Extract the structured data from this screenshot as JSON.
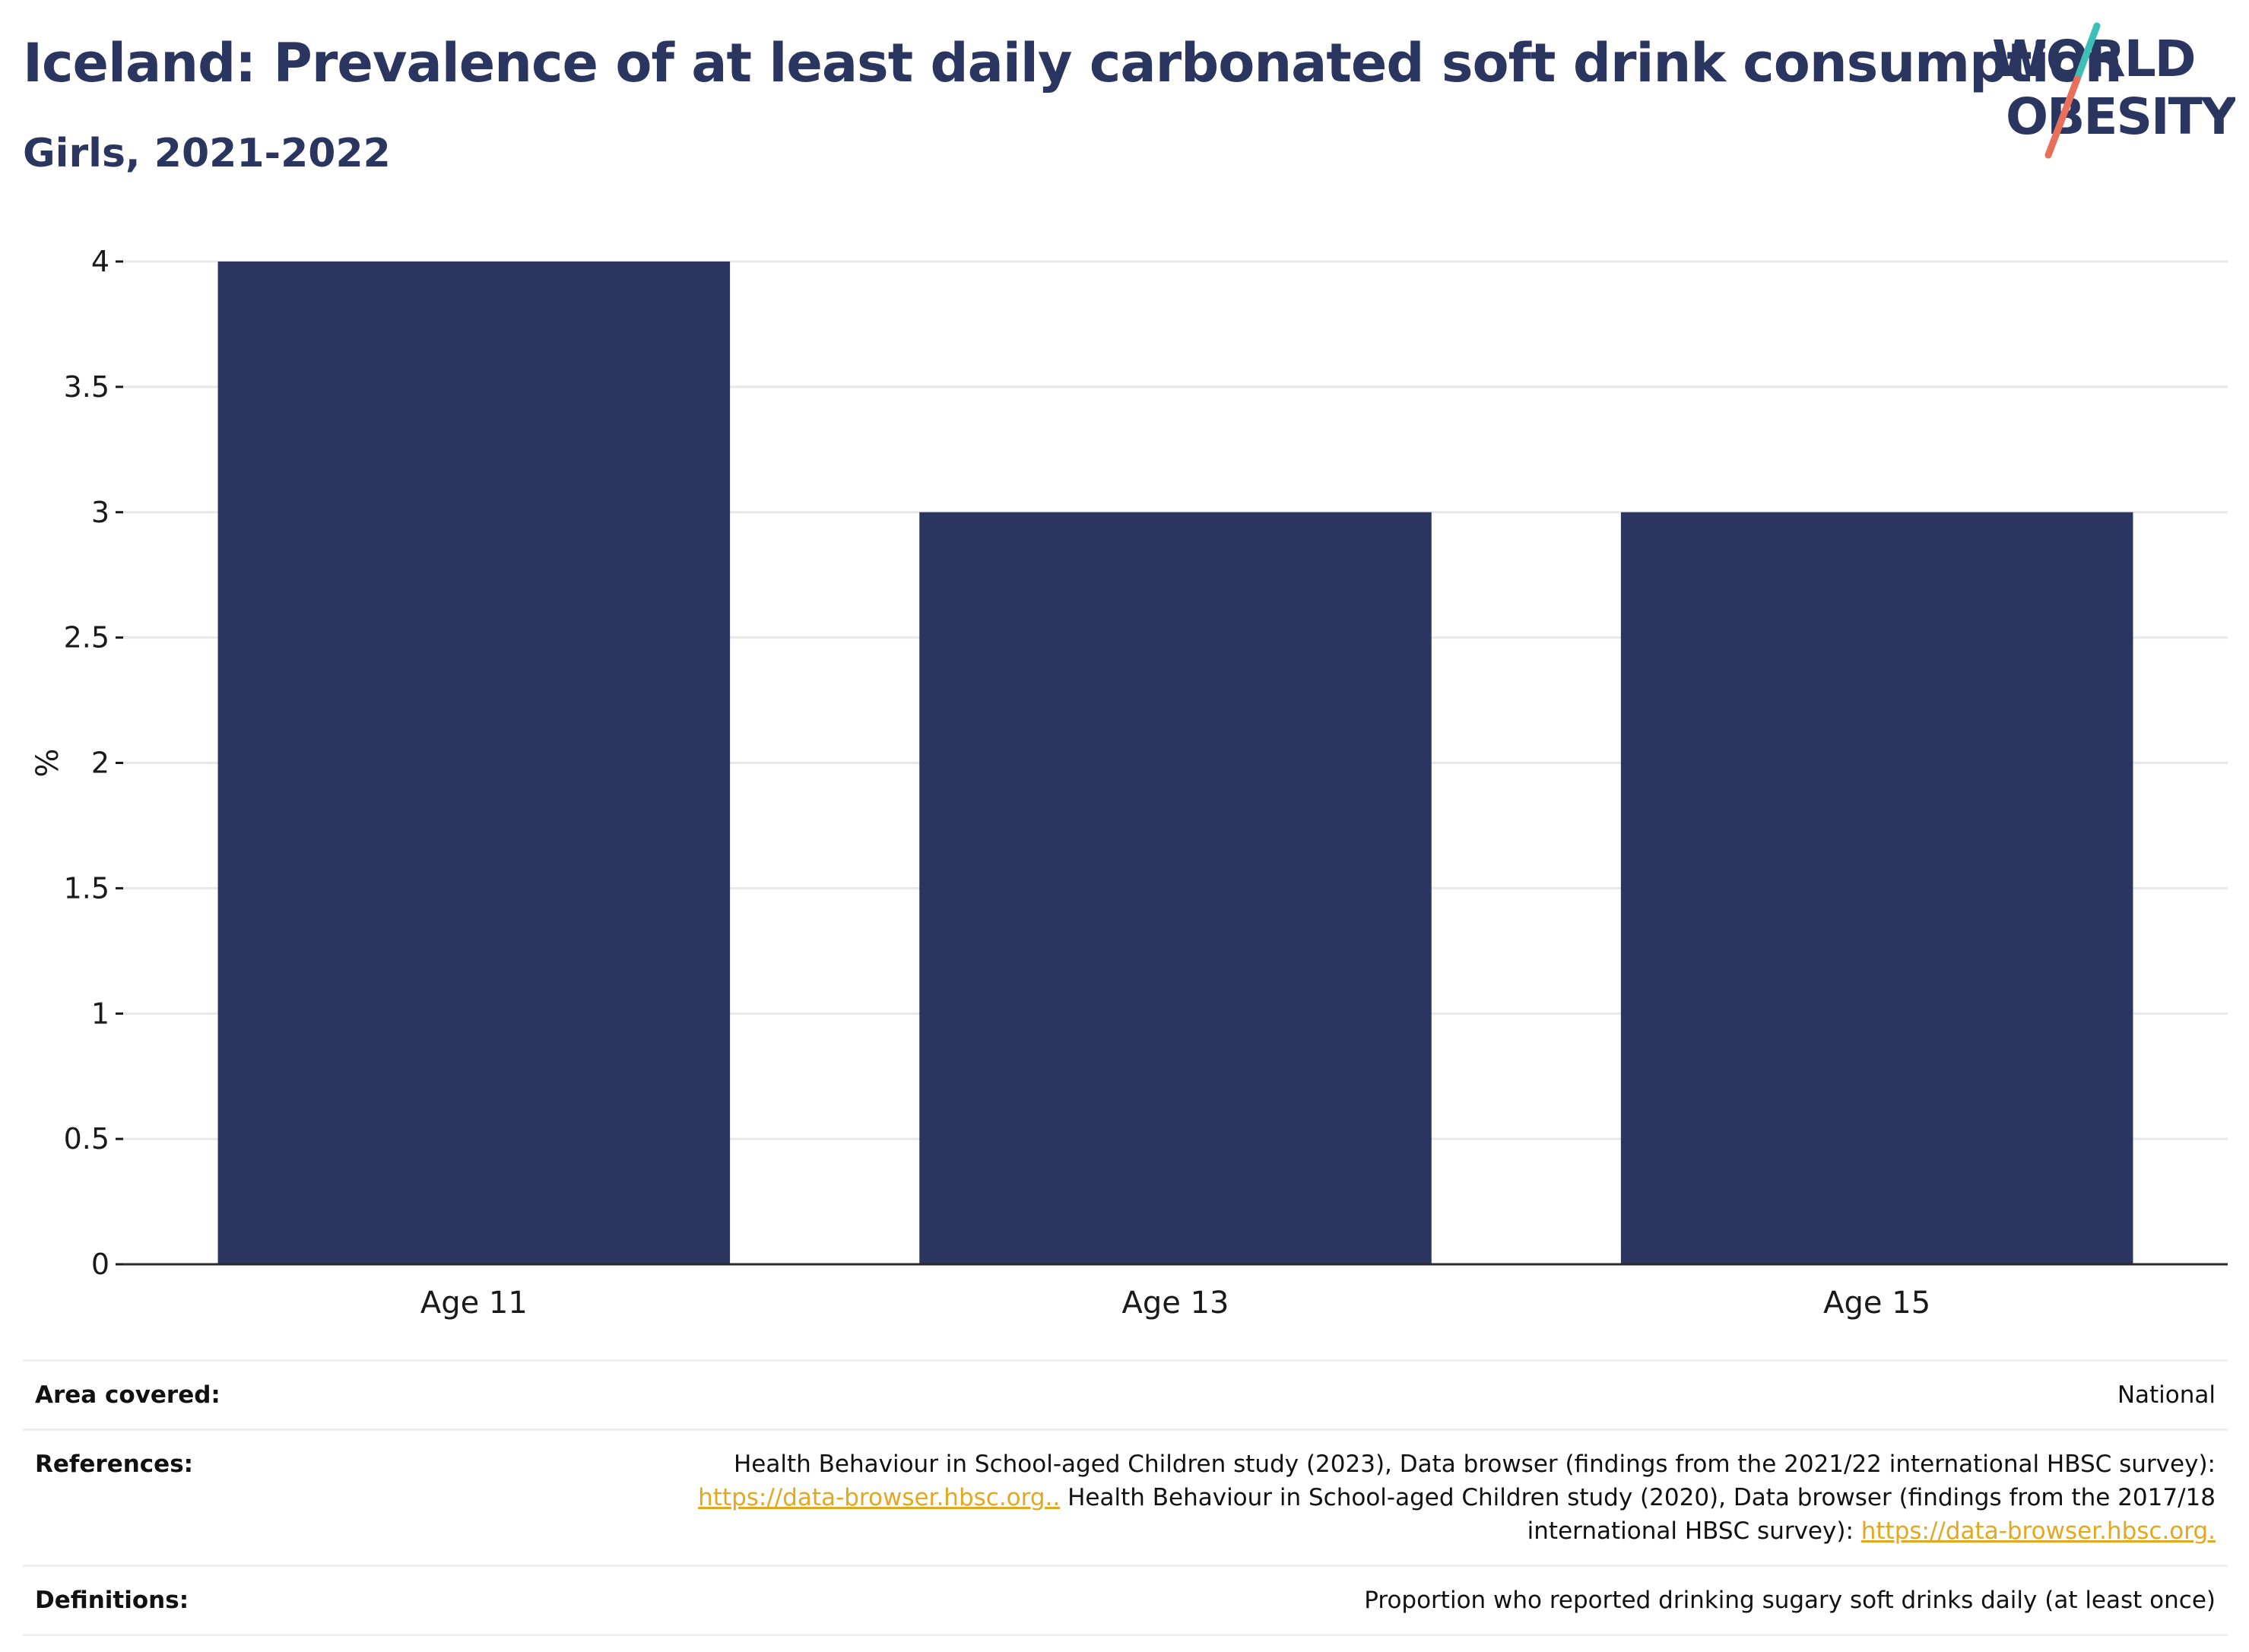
{
  "header": {
    "title": "Iceland: Prevalence of at least daily carbonated soft drink consumption",
    "subtitle": "Girls, 2021-2022"
  },
  "logo": {
    "line1": "WORLD",
    "line2": "OBESITY",
    "accent_teal": "#3dbfb8",
    "accent_coral": "#e8705a",
    "text_color": "#2b3660"
  },
  "chart_data": {
    "type": "bar",
    "categories": [
      "Age 11",
      "Age 13",
      "Age 15"
    ],
    "values": [
      4,
      3,
      3
    ],
    "ylabel": "%",
    "ylim": [
      0,
      4
    ],
    "yticks": [
      0,
      0.5,
      1,
      1.5,
      2,
      2.5,
      3,
      3.5,
      4
    ],
    "ytick_labels": [
      "0",
      "0.5",
      "1",
      "1.5",
      "2",
      "2.5",
      "3",
      "3.5",
      "4"
    ],
    "grid": true,
    "bar_color": "#2b3660"
  },
  "meta": {
    "area_label": "Area covered:",
    "area_value": "National",
    "references_label": "References:",
    "references_text1": "Health Behaviour in School-aged Children study (2023), Data browser (findings from the 2021/22 international HBSC survey):",
    "references_link1": "https://data-browser.hbsc.org..",
    "references_text2": " Health Behaviour in School-aged Children study (2020), Data browser (findings from the 2017/18",
    "references_text3": "international HBSC survey): ",
    "references_link2": "https://data-browser.hbsc.org.",
    "definitions_label": "Definitions:",
    "definitions_value": "Proportion who reported drinking sugary soft drinks daily (at least once)"
  }
}
